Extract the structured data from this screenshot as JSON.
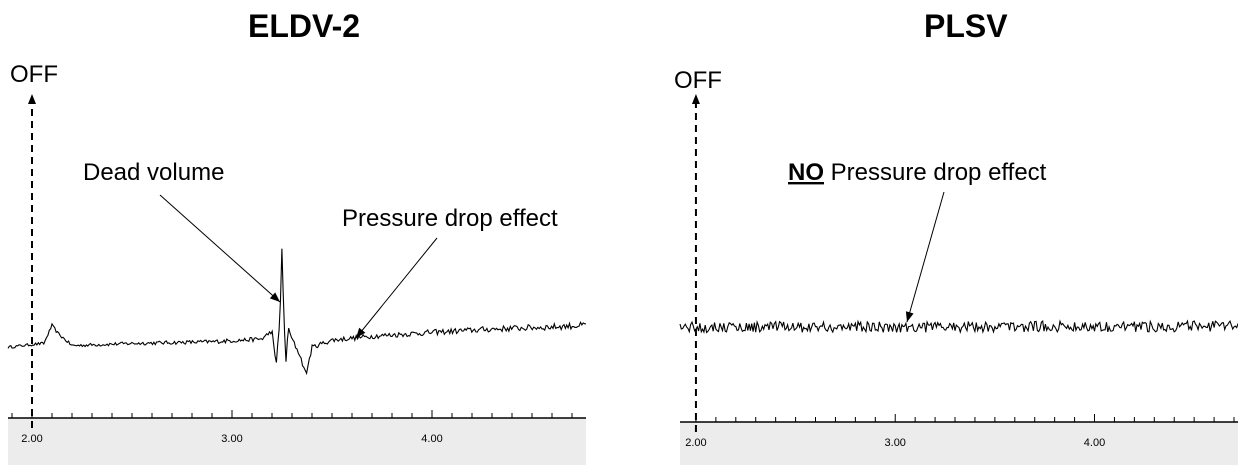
{
  "chart_data": [
    {
      "type": "line",
      "title": "ELDV-2",
      "xlabel": "",
      "ylabel": "",
      "xlim": [
        1.88,
        4.77
      ],
      "x_ticks": [
        "2.00",
        "3.00",
        "4.00"
      ],
      "tick_values": [
        2.0,
        3.0,
        4.0
      ],
      "marker": {
        "x": 2.0,
        "label": "OFF"
      },
      "annotations": [
        {
          "text": "Dead volume",
          "target_x": 3.22
        },
        {
          "text": "Pressure drop effect",
          "target_x": 3.6
        }
      ],
      "series": [
        {
          "x": [
            1.88,
            1.95,
            2.0,
            2.06,
            2.1,
            2.13,
            2.2,
            2.5,
            2.9,
            3.15,
            3.2,
            3.22,
            3.24,
            3.25,
            3.26,
            3.27,
            3.28,
            3.3,
            3.34,
            3.37,
            3.4,
            3.5,
            3.7,
            4.0,
            4.3,
            4.6,
            4.77
          ],
          "values": [
            0.05,
            0.08,
            0.1,
            0.12,
            0.45,
            0.3,
            0.08,
            0.12,
            0.15,
            0.2,
            0.35,
            -0.3,
            0.6,
            1.9,
            0.5,
            -0.2,
            0.4,
            0.2,
            -0.1,
            -0.45,
            0.05,
            0.18,
            0.25,
            0.32,
            0.38,
            0.42,
            0.45
          ]
        }
      ]
    },
    {
      "type": "line",
      "title": "PLSV",
      "xlabel": "",
      "ylabel": "",
      "xlim": [
        1.92,
        4.72
      ],
      "x_ticks": [
        "2.00",
        "3.00",
        "4.00"
      ],
      "tick_values": [
        2.0,
        3.0,
        4.0
      ],
      "marker": {
        "x": 2.0,
        "label": "OFF"
      },
      "annotations": [
        {
          "text_bold": "NO",
          "text": " Pressure drop effect",
          "target_x": 3.05
        }
      ],
      "series": [
        {
          "x": [
            1.92,
            2.5,
            3.0,
            3.5,
            4.0,
            4.5,
            4.72
          ],
          "values": [
            0.0,
            0.0,
            0.0,
            0.02,
            0.03,
            0.03,
            0.03
          ]
        }
      ]
    }
  ]
}
